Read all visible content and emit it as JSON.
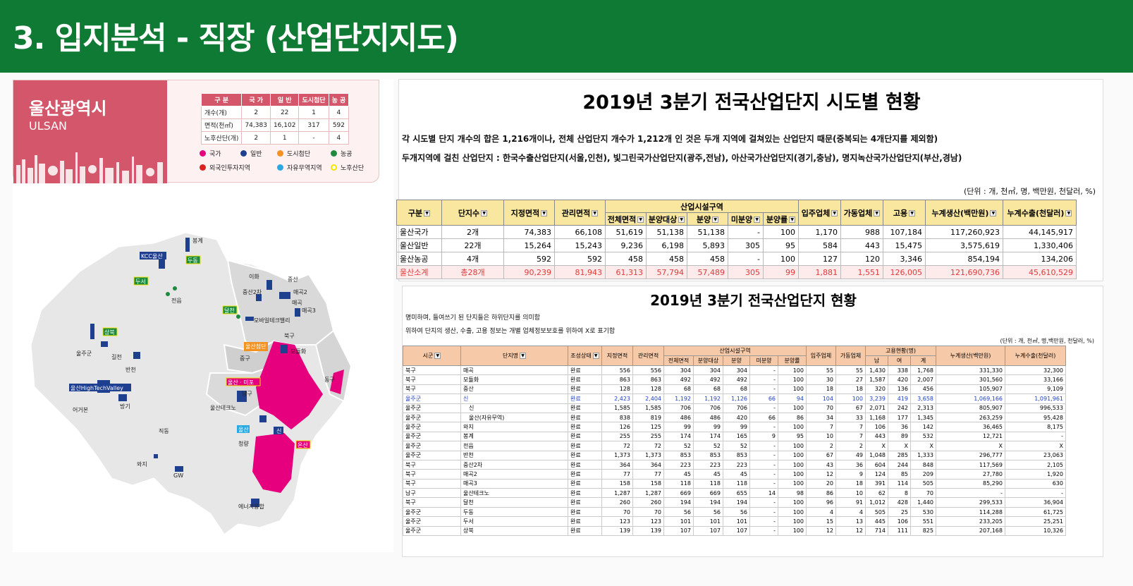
{
  "header": {
    "title": "3. 입지분석 - 직장 (산업단지지도)"
  },
  "city": {
    "name_ko": "울산광역시",
    "name_en": "ULSAN"
  },
  "stats": {
    "headers": [
      "구 분",
      "국 가",
      "일 반",
      "도시첨단",
      "농 공"
    ],
    "rows": [
      [
        "개수(개)",
        "2",
        "22",
        "1",
        "4"
      ],
      [
        "면적(천㎡)",
        "74,383",
        "16,102",
        "317",
        "592"
      ],
      [
        "노후산단(개)",
        "2",
        "1",
        "-",
        "4"
      ]
    ]
  },
  "legend": [
    {
      "label": "국가",
      "color": "#e6007e"
    },
    {
      "label": "일반",
      "color": "#1f3f8f"
    },
    {
      "label": "도시첨단",
      "color": "#f39221"
    },
    {
      "label": "농공",
      "color": "#1d8a3e"
    },
    {
      "label": "외국인투자지역",
      "color": "#e02020"
    },
    {
      "label": "자유무역지역",
      "color": "#29a9e1"
    },
    {
      "label": "노후산단",
      "color": "#f2e600"
    }
  ],
  "map": {
    "labels": {
      "bonggye": "봉계",
      "kcc": "KCC울산",
      "dudong": "두동",
      "duseo": "두서",
      "jeonup": "전읍",
      "ihwa": "이화",
      "jungsan": "중산",
      "jungsan2": "중산2차",
      "maegok2": "매곡2",
      "maegok": "매곡",
      "maegok3": "매곡3",
      "dalcheon": "달천",
      "mobile": "모바일테크밸리",
      "bukgu": "북구",
      "sangbuk": "상북",
      "uljugun": "울주군",
      "gilcheon": "길천",
      "banchen": "반천",
      "hightech": "울산HighTechValley",
      "eogul": "어거본",
      "bangi": "방기",
      "jikdong": "직동",
      "wasi": "와지",
      "gw": "GW",
      "ulsancity": "울산첨단",
      "junggu": "중구",
      "ulsanmipo": "울산 · 미포",
      "namgu": "남구",
      "modonghwa": "모듈화",
      "donggu": "동구",
      "techno": "울산테크노",
      "ulsan": "울산",
      "cheongnyang": "청량",
      "sin": "신",
      "onsan": "온산",
      "energy": "에너지융합"
    }
  },
  "table1": {
    "title": "2019년 3분기 전국산업단지 시도별 현황",
    "note1": "각 시도별 단지 개수의 합은 1,216개이나, 전체 산업단지 개수가 1,212개 인 것은 두개 지역에 걸쳐있는 산업단지 때문(중복되는 4개단지를 제외함)",
    "note2": "두개지역에 걸친 산업단지 : 한국수출산업단지(서울,인천), 빛그린국가산업단지(광주,전남), 아산국가산업단지(경기,충남), 명지녹산국가산업단지(부산,경남)",
    "unit": "(단위 : 개, 천㎡, 명, 백만원, 천달러, %)",
    "group": "산업시설구역",
    "headers": {
      "gubun": "구분",
      "danji": "단지수",
      "jijeong": "지정면적",
      "gwanri": "관리면적",
      "jeonche": "전체면적",
      "bunyangdae": "분양대상",
      "bunyang": "분양",
      "mibun": "미분양",
      "bunyangyul": "분양률",
      "ipju": "입주업체",
      "gadong": "가동업체",
      "goyong": "고용",
      "saengsan": "누계생산(백만원)",
      "suchul": "누계수출(천달러)"
    },
    "rows": [
      [
        "울산국가",
        "2개",
        "74,383",
        "66,108",
        "51,619",
        "51,138",
        "51,138",
        "-",
        "100",
        "1,170",
        "988",
        "107,184",
        "117,260,923",
        "44,145,917"
      ],
      [
        "울산일반",
        "22개",
        "15,264",
        "15,243",
        "9,236",
        "6,198",
        "5,893",
        "305",
        "95",
        "584",
        "443",
        "15,475",
        "3,575,619",
        "1,330,406"
      ],
      [
        "울산농공",
        "4개",
        "592",
        "592",
        "458",
        "458",
        "458",
        "-",
        "100",
        "127",
        "120",
        "3,346",
        "854,194",
        "134,206"
      ],
      [
        "울산소계",
        "총28개",
        "90,239",
        "81,943",
        "61,313",
        "57,794",
        "57,489",
        "305",
        "99",
        "1,881",
        "1,551",
        "126,005",
        "121,690,736",
        "45,610,529"
      ]
    ]
  },
  "table2": {
    "title": "2019년 3분기 전국산업단지 현황",
    "note1": "명미하며, 들여쓰기 된 단지들은 하위단지를 의미함",
    "note2": "위하여 단지의 생산, 수출, 고용 정보는 개별 업체정보보호를 위하여 X로 표기함",
    "unit": "(단위 : 개, 천㎡, 명,백만원, 천달러, %)",
    "groups": {
      "facility": "산업시설구역",
      "employ": "고용현황(명)"
    },
    "headers": {
      "sigun": "시군",
      "name": "단지명",
      "status": "조성상태",
      "jijeong": "지정면적",
      "gwanri": "관리면적",
      "jeonche": "전체면적",
      "bunyangdae": "분양대상",
      "bunyang": "분양",
      "mibun": "미분양",
      "yul": "분양률",
      "ipju": "입주업체",
      "gadong": "가동업체",
      "nam": "남",
      "yeo": "여",
      "gye": "계",
      "saengsan": "누계생산(백만원)",
      "suchul": "누계수출(천달러)"
    },
    "rows": [
      [
        "북구",
        "매곡",
        "완료",
        "556",
        "556",
        "304",
        "304",
        "304",
        "-",
        "100",
        "55",
        "55",
        "1,430",
        "338",
        "1,768",
        "331,330",
        "32,300"
      ],
      [
        "북구",
        "모듈화",
        "완료",
        "863",
        "863",
        "492",
        "492",
        "492",
        "-",
        "100",
        "30",
        "27",
        "1,587",
        "420",
        "2,007",
        "301,560",
        "33,166"
      ],
      [
        "북구",
        "중산",
        "완료",
        "128",
        "128",
        "68",
        "68",
        "68",
        "-",
        "100",
        "18",
        "18",
        "320",
        "136",
        "456",
        "105,907",
        "9,109"
      ],
      [
        "울주군",
        "신",
        "완료",
        "2,423",
        "2,404",
        "1,192",
        "1,192",
        "1,126",
        "66",
        "94",
        "104",
        "100",
        "3,239",
        "419",
        "3,658",
        "1,069,166",
        "1,091,961"
      ],
      [
        "울주군",
        "　신",
        "완료",
        "1,585",
        "1,585",
        "706",
        "706",
        "706",
        "-",
        "100",
        "70",
        "67",
        "2,071",
        "242",
        "2,313",
        "805,907",
        "996,533"
      ],
      [
        "울주군",
        "　울산(자유무역)",
        "완료",
        "838",
        "819",
        "486",
        "486",
        "420",
        "66",
        "86",
        "34",
        "33",
        "1,168",
        "177",
        "1,345",
        "263,259",
        "95,428"
      ],
      [
        "울주군",
        "와지",
        "완료",
        "126",
        "125",
        "99",
        "99",
        "99",
        "-",
        "100",
        "7",
        "7",
        "106",
        "36",
        "142",
        "36,465",
        "8,175"
      ],
      [
        "울주군",
        "봉계",
        "완료",
        "255",
        "255",
        "174",
        "174",
        "165",
        "9",
        "95",
        "10",
        "7",
        "443",
        "89",
        "532",
        "12,721",
        "-"
      ],
      [
        "울주군",
        "전읍",
        "완료",
        "72",
        "72",
        "52",
        "52",
        "52",
        "-",
        "100",
        "2",
        "2",
        "X",
        "X",
        "X",
        "X",
        "X"
      ],
      [
        "울주군",
        "반천",
        "완료",
        "1,373",
        "1,373",
        "853",
        "853",
        "853",
        "-",
        "100",
        "67",
        "49",
        "1,048",
        "285",
        "1,333",
        "296,777",
        "23,063"
      ],
      [
        "북구",
        "중산2차",
        "완료",
        "364",
        "364",
        "223",
        "223",
        "223",
        "-",
        "100",
        "43",
        "36",
        "604",
        "244",
        "848",
        "117,569",
        "2,105"
      ],
      [
        "북구",
        "매곡2",
        "완료",
        "77",
        "77",
        "45",
        "45",
        "45",
        "-",
        "100",
        "12",
        "9",
        "124",
        "85",
        "209",
        "27,780",
        "1,920"
      ],
      [
        "북구",
        "매곡3",
        "완료",
        "158",
        "158",
        "118",
        "118",
        "118",
        "-",
        "100",
        "20",
        "18",
        "391",
        "114",
        "505",
        "85,290",
        "630"
      ],
      [
        "남구",
        "울산테크노",
        "완료",
        "1,287",
        "1,287",
        "669",
        "669",
        "655",
        "14",
        "98",
        "86",
        "10",
        "62",
        "8",
        "70",
        "-",
        "-"
      ],
      [
        "북구",
        "달천",
        "완료",
        "260",
        "260",
        "194",
        "194",
        "194",
        "-",
        "100",
        "96",
        "91",
        "1,012",
        "428",
        "1,440",
        "299,533",
        "36,904"
      ],
      [
        "울주군",
        "두동",
        "완료",
        "70",
        "70",
        "56",
        "56",
        "56",
        "-",
        "100",
        "4",
        "4",
        "505",
        "25",
        "530",
        "114,288",
        "61,725"
      ],
      [
        "울주군",
        "두서",
        "완료",
        "123",
        "123",
        "101",
        "101",
        "101",
        "-",
        "100",
        "15",
        "13",
        "445",
        "106",
        "551",
        "233,205",
        "25,251"
      ],
      [
        "울주군",
        "상북",
        "완료",
        "139",
        "139",
        "107",
        "107",
        "107",
        "-",
        "100",
        "12",
        "12",
        "714",
        "111",
        "825",
        "207,168",
        "10,326"
      ]
    ]
  }
}
